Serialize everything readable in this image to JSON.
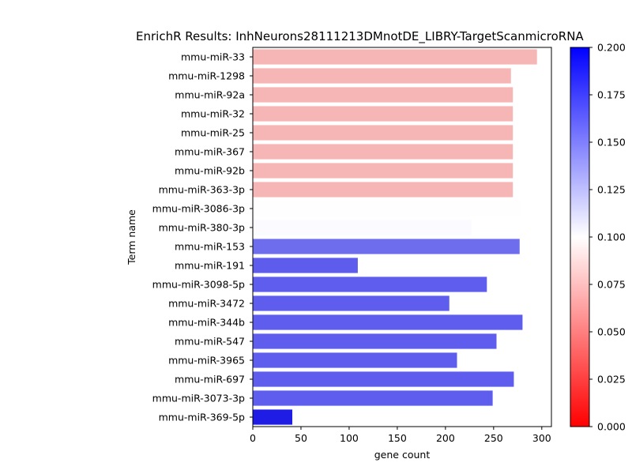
{
  "chart_data": {
    "type": "bar",
    "orientation": "horizontal",
    "title": "EnrichR Results: InhNeurons28111213DMnotDE_LIBRY-TargetScanmicroRNA",
    "xlabel": "gene count",
    "ylabel": "Term name",
    "xlim": [
      0,
      310
    ],
    "xticks": [
      0,
      50,
      100,
      150,
      200,
      250,
      300
    ],
    "categories": [
      "mmu-miR-33",
      "mmu-miR-1298",
      "mmu-miR-92a",
      "mmu-miR-32",
      "mmu-miR-25",
      "mmu-miR-367",
      "mmu-miR-92b",
      "mmu-miR-363-3p",
      "mmu-miR-3086-3p",
      "mmu-miR-380-3p",
      "mmu-miR-153",
      "mmu-miR-191",
      "mmu-miR-3098-5p",
      "mmu-miR-3472",
      "mmu-miR-344b",
      "mmu-miR-547",
      "mmu-miR-3965",
      "mmu-miR-697",
      "mmu-miR-3073-3p",
      "mmu-miR-369-5p"
    ],
    "values": [
      295,
      268,
      270,
      270,
      270,
      270,
      270,
      270,
      278,
      227,
      277,
      109,
      243,
      204,
      280,
      253,
      212,
      271,
      249,
      41
    ],
    "bar_colors": [
      "#f6b6b6",
      "#f6b6b6",
      "#f6b6b6",
      "#f6b6b6",
      "#f6b6b6",
      "#f6b6b6",
      "#f6b6b6",
      "#f6b6b6",
      "#fefefe",
      "#fbfbff",
      "#6e6ded",
      "#5e5ced",
      "#5f5dee",
      "#5f5dee",
      "#5f5dee",
      "#5f5dee",
      "#5f5dee",
      "#5f5dee",
      "#5f5dee",
      "#1f1ce6"
    ],
    "colorbar": {
      "range": [
        0.0,
        0.2
      ],
      "ticks": [
        "0.000",
        "0.025",
        "0.050",
        "0.075",
        "0.100",
        "0.125",
        "0.150",
        "0.175",
        "0.200"
      ],
      "colors": {
        "low": "#ff0000",
        "mid": "#ffffff",
        "high": "#0000ff"
      }
    }
  }
}
